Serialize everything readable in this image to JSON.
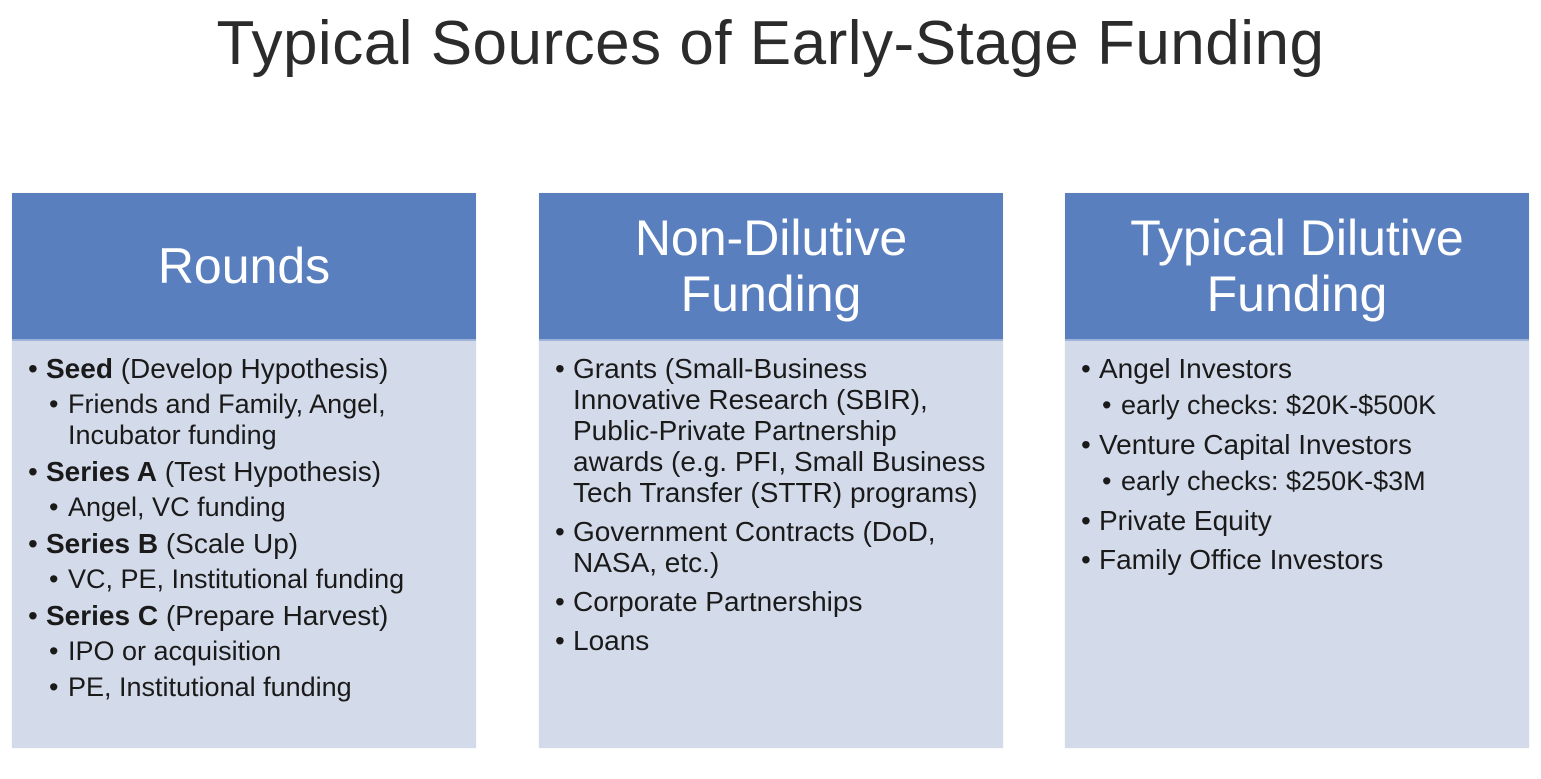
{
  "title": "Typical Sources of Early-Stage Funding",
  "colors": {
    "header_bg": "#5a7fbe",
    "body_bg": "#d3dae9",
    "header_text": "#ffffff"
  },
  "columns": [
    {
      "header_lines": [
        "Rounds"
      ],
      "items": [
        {
          "label": "Seed",
          "detail": " (Develop Hypothesis)",
          "sub": [
            "Friends and Family, Angel, Incubator funding"
          ]
        },
        {
          "label": "Series A",
          "detail": " (Test Hypothesis)",
          "sub": [
            "Angel, VC funding"
          ]
        },
        {
          "label": "Series B",
          "detail": " (Scale Up)",
          "sub": [
            "VC, PE, Institutional funding"
          ]
        },
        {
          "label": "Series C",
          "detail": " (Prepare Harvest)",
          "sub": [
            "IPO or acquisition",
            "PE, Institutional funding"
          ]
        }
      ]
    },
    {
      "header_lines": [
        "Non-Dilutive",
        "Funding"
      ],
      "items": [
        {
          "text": "Grants (Small-Business Innovative Research (SBIR), Public-Private Partnership awards (e.g. PFI, Small Business Tech Transfer (STTR) programs)"
        },
        {
          "text": "Government Contracts (DoD, NASA, etc.)"
        },
        {
          "text": "Corporate Partnerships"
        },
        {
          "text": "Loans"
        }
      ]
    },
    {
      "header_lines": [
        "Typical Dilutive",
        "Funding"
      ],
      "items": [
        {
          "text": "Angel Investors",
          "sub": [
            "early checks: $20K-$500K"
          ]
        },
        {
          "text": "Venture Capital Investors",
          "sub": [
            "early checks: $250K-$3M"
          ]
        },
        {
          "text": "Private Equity"
        },
        {
          "text": "Family Office Investors"
        }
      ]
    }
  ]
}
